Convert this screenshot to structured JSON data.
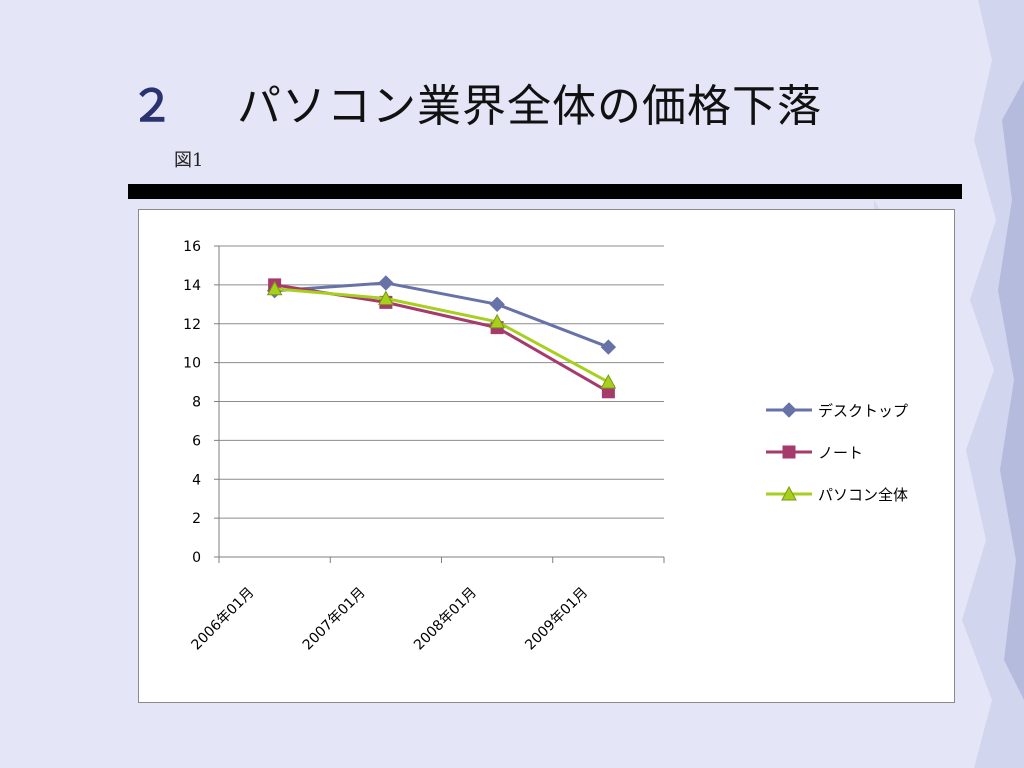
{
  "slide": {
    "number": "２",
    "title": "パソコン業界全体の価格下落",
    "figure_label": "図1"
  },
  "chart_data": {
    "type": "line",
    "categories": [
      "2006年01月",
      "2007年01月",
      "2008年01月",
      "2009年01月"
    ],
    "ylim": [
      0,
      16
    ],
    "yticks": [
      0,
      2,
      4,
      6,
      8,
      10,
      12,
      14,
      16
    ],
    "grid": true,
    "legend_position": "right",
    "series": [
      {
        "name": "デスクトップ",
        "values": [
          13.7,
          14.1,
          13.0,
          10.8
        ],
        "color": "#6672a8",
        "marker": "diamond"
      },
      {
        "name": "ノート",
        "values": [
          14.0,
          13.1,
          11.8,
          8.5
        ],
        "color": "#a63a6c",
        "marker": "square"
      },
      {
        "name": "パソコン全体",
        "values": [
          13.8,
          13.3,
          12.1,
          9.0
        ],
        "color": "#a6cf1e",
        "marker": "triangle"
      }
    ]
  }
}
